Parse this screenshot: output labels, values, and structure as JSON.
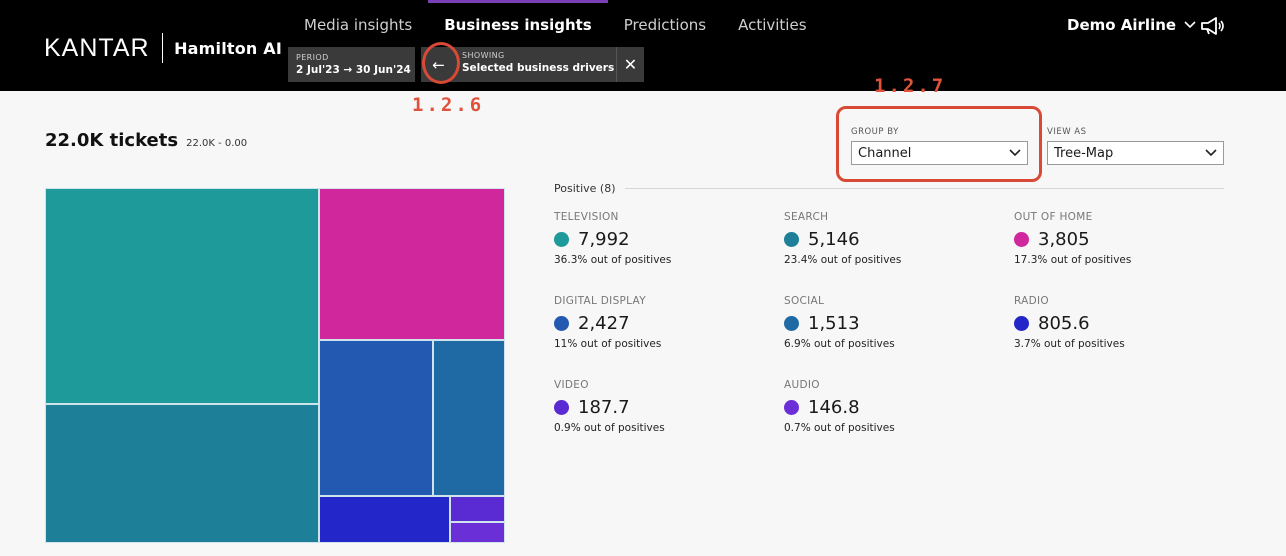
{
  "brand": {
    "name": "KANTAR",
    "product": "Hamilton AI"
  },
  "nav": {
    "tabs": [
      {
        "label": "Media insights",
        "active": false
      },
      {
        "label": "Business insights",
        "active": true
      },
      {
        "label": "Predictions",
        "active": false
      },
      {
        "label": "Activities",
        "active": false
      }
    ]
  },
  "filters": {
    "period_caption": "PERIOD",
    "period_value": "2 Jul'23 → 30 Jun'24",
    "showing_caption": "SHOWING",
    "showing_value": "Selected business drivers",
    "back_icon": "←",
    "close_icon": "✕"
  },
  "account": {
    "name": "Demo Airline",
    "chevron": "⌵",
    "icon": "megaphone-icon"
  },
  "annotations": {
    "back": "1.2.6",
    "group_by": "1.2.7",
    "color": "#d84a36"
  },
  "summary": {
    "total": "22.0K tickets",
    "range": "22.0K - 0.00"
  },
  "controls": {
    "group_by": {
      "caption": "GROUP BY",
      "value": "Channel"
    },
    "view_as": {
      "caption": "VIEW AS",
      "value": "Tree-Map"
    }
  },
  "legend": {
    "group_label": "Positive (8)",
    "items": [
      {
        "name": "TELEVISION",
        "value": "7,992",
        "share": "36.3% out of positives",
        "color": "#1e9a9a"
      },
      {
        "name": "SEARCH",
        "value": "5,146",
        "share": "23.4% out of positives",
        "color": "#1e8098"
      },
      {
        "name": "OUT OF HOME",
        "value": "3,805",
        "share": "17.3% out of positives",
        "color": "#d1279d"
      },
      {
        "name": "DIGITAL DISPLAY",
        "value": "2,427",
        "share": "11% out of positives",
        "color": "#2359b0"
      },
      {
        "name": "SOCIAL",
        "value": "1,513",
        "share": "6.9% out of positives",
        "color": "#1f6aa5"
      },
      {
        "name": "RADIO",
        "value": "805.6",
        "share": "3.7% out of positives",
        "color": "#2326c9"
      },
      {
        "name": "VIDEO",
        "value": "187.7",
        "share": "0.9% out of positives",
        "color": "#5a2ad3"
      },
      {
        "name": "AUDIO",
        "value": "146.8",
        "share": "0.7% out of positives",
        "color": "#6a2fd6"
      }
    ]
  }
}
